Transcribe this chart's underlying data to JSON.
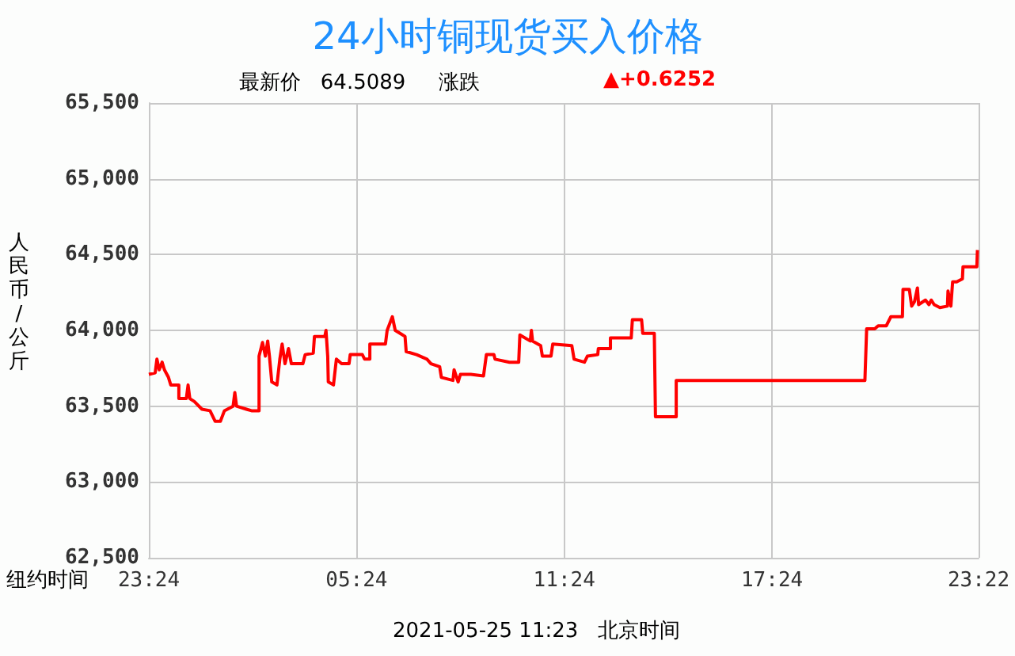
{
  "chart_data": {
    "type": "line",
    "title": "24小时铜现货买入价格",
    "subtitle": "最新价   64.5089     涨跌",
    "ylabel": "人民币/公斤",
    "xlabel": "纽约时间",
    "annotations": [
      "▲+0.6252",
      "2021-05-25 11:23   北京时间"
    ],
    "x": [
      "2021-05-23T23:24",
      "2021-05-23T23:35",
      "2021-05-23T23:38",
      "2021-05-23T23:42",
      "2021-05-23T23:47",
      "2021-05-23T23:51",
      "2021-05-23T23:58",
      "2021-05-24T00:02",
      "2021-05-24T00:16",
      "2021-05-24T00:16",
      "2021-05-24T00:29",
      "2021-05-24T00:32",
      "2021-05-24T00:35",
      "2021-05-24T00:43",
      "2021-05-24T00:56",
      "2021-05-24T01:10",
      "2021-05-24T01:19",
      "2021-05-24T01:28",
      "2021-05-24T01:35",
      "2021-05-24T01:50",
      "2021-05-24T01:53",
      "2021-05-24T01:56",
      "2021-05-24T02:13",
      "2021-05-24T02:22",
      "2021-05-24T02:35",
      "2021-05-24T02:35",
      "2021-05-24T02:41",
      "2021-05-24T02:46",
      "2021-05-24T02:50",
      "2021-05-24T02:53",
      "2021-05-24T02:57",
      "2021-05-24T03:06",
      "2021-05-24T03:11",
      "2021-05-24T03:15",
      "2021-05-24T03:20",
      "2021-05-24T03:26",
      "2021-05-24T03:31",
      "2021-05-24T03:51",
      "2021-05-24T03:55",
      "2021-05-24T04:09",
      "2021-05-24T04:11",
      "2021-05-24T04:29",
      "2021-05-24T04:31",
      "2021-05-24T04:34",
      "2021-05-24T04:35",
      "2021-05-24T04:44",
      "2021-05-24T04:49",
      "2021-05-24T04:58",
      "2021-05-24T05:11",
      "2021-05-24T05:13",
      "2021-05-24T05:34",
      "2021-05-24T05:38",
      "2021-05-24T05:47",
      "2021-05-24T05:47",
      "2021-05-24T06:14",
      "2021-05-24T06:17",
      "2021-05-24T06:26",
      "2021-05-24T06:31",
      "2021-05-24T06:48",
      "2021-05-24T06:50",
      "2021-05-24T07:08",
      "2021-05-24T07:26",
      "2021-05-24T07:33",
      "2021-05-24T07:48",
      "2021-05-24T07:51",
      "2021-05-24T08:11",
      "2021-05-24T08:13",
      "2021-05-24T08:20",
      "2021-05-24T08:24",
      "2021-05-24T08:42",
      "2021-05-24T09:04",
      "2021-05-24T09:09",
      "2021-05-24T09:22",
      "2021-05-24T09:24",
      "2021-05-24T09:49",
      "2021-05-24T10:05",
      "2021-05-24T10:07",
      "2021-05-24T10:25",
      "2021-05-24T10:27",
      "2021-05-24T10:29",
      "2021-05-24T10:43",
      "2021-05-24T10:46",
      "2021-05-24T11:01",
      "2021-05-24T11:04",
      "2021-05-24T11:37",
      "2021-05-24T11:41",
      "2021-05-24T11:59",
      "2021-05-24T12:04",
      "2021-05-24T12:22",
      "2021-05-24T12:23",
      "2021-05-24T12:44",
      "2021-05-24T12:44",
      "2021-05-24T13:20",
      "2021-05-24T13:22",
      "2021-05-24T13:38",
      "2021-05-24T13:40",
      "2021-05-24T14:00",
      "2021-05-24T14:02",
      "2021-05-24T14:38",
      "2021-05-24T14:38",
      "2021-05-24T20:05",
      "2021-05-24T20:08",
      "2021-05-24T20:22",
      "2021-05-24T20:28",
      "2021-05-24T20:42",
      "2021-05-24T20:50",
      "2021-05-24T21:10",
      "2021-05-24T21:11",
      "2021-05-24T21:22",
      "2021-05-24T21:26",
      "2021-05-24T21:31",
      "2021-05-24T21:36",
      "2021-05-24T21:38",
      "2021-05-24T21:50",
      "2021-05-24T21:56",
      "2021-05-24T22:00",
      "2021-05-24T22:05",
      "2021-05-24T22:15",
      "2021-05-24T22:28",
      "2021-05-24T22:29",
      "2021-05-24T22:34",
      "2021-05-24T22:37",
      "2021-05-24T22:44",
      "2021-05-24T22:54",
      "2021-05-24T22:55",
      "2021-05-24T23:19",
      "2021-05-24T23:20"
    ],
    "series": [
      {
        "color": "#ff0000",
        "values": [
          63710,
          63720,
          63810,
          63740,
          63790,
          63740,
          63690,
          63640,
          63640,
          63550,
          63550,
          63640,
          63550,
          63530,
          63480,
          63470,
          63400,
          63400,
          63470,
          63500,
          63590,
          63500,
          63480,
          63470,
          63470,
          63830,
          63920,
          63830,
          63930,
          63830,
          63660,
          63640,
          63810,
          63910,
          63780,
          63880,
          63780,
          63780,
          63840,
          63850,
          63960,
          63960,
          64000,
          63830,
          63660,
          63640,
          63810,
          63780,
          63780,
          63840,
          63840,
          63810,
          63810,
          63910,
          63910,
          64000,
          64090,
          64000,
          63960,
          63860,
          63840,
          63810,
          63780,
          63760,
          63690,
          63670,
          63740,
          63660,
          63710,
          63710,
          63700,
          63840,
          63840,
          63810,
          63790,
          63790,
          63970,
          63930,
          64000,
          63930,
          63900,
          63830,
          63830,
          63910,
          63900,
          63810,
          63790,
          63830,
          63840,
          63880,
          63880,
          63950,
          63950,
          64070,
          64070,
          63980,
          63980,
          63430,
          63430,
          63670,
          63670,
          64010,
          64010,
          64030,
          64030,
          64090,
          64090,
          64270,
          64270,
          64160,
          64190,
          64280,
          64170,
          64200,
          64170,
          64200,
          64170,
          64150,
          64160,
          64260,
          64160,
          64320,
          64320,
          64340,
          64420,
          64420,
          64530
        ]
      }
    ],
    "xlim": [
      "2021-05-23T23:24",
      "2021-05-24T23:22"
    ],
    "xticks": [
      {
        "value": "2021-05-23T23:24",
        "label": "23:24"
      },
      {
        "value": "2021-05-24T05:24",
        "label": "05:24"
      },
      {
        "value": "2021-05-24T11:24",
        "label": "11:24"
      },
      {
        "value": "2021-05-24T17:24",
        "label": "17:24"
      },
      {
        "value": "2021-05-24T23:22",
        "label": "23:22"
      }
    ],
    "ylim": [
      62500,
      65500
    ],
    "yticks": [
      {
        "value": 62500,
        "label": "62,500"
      },
      {
        "value": 63000,
        "label": "63,000"
      },
      {
        "value": 63500,
        "label": "63,500"
      },
      {
        "value": 64000,
        "label": "64,000"
      },
      {
        "value": 64500,
        "label": "64,500"
      },
      {
        "value": 65000,
        "label": "65,000"
      },
      {
        "value": 65500,
        "label": "65,500"
      }
    ],
    "grid": true,
    "marker": "none",
    "line_style": "solid"
  }
}
